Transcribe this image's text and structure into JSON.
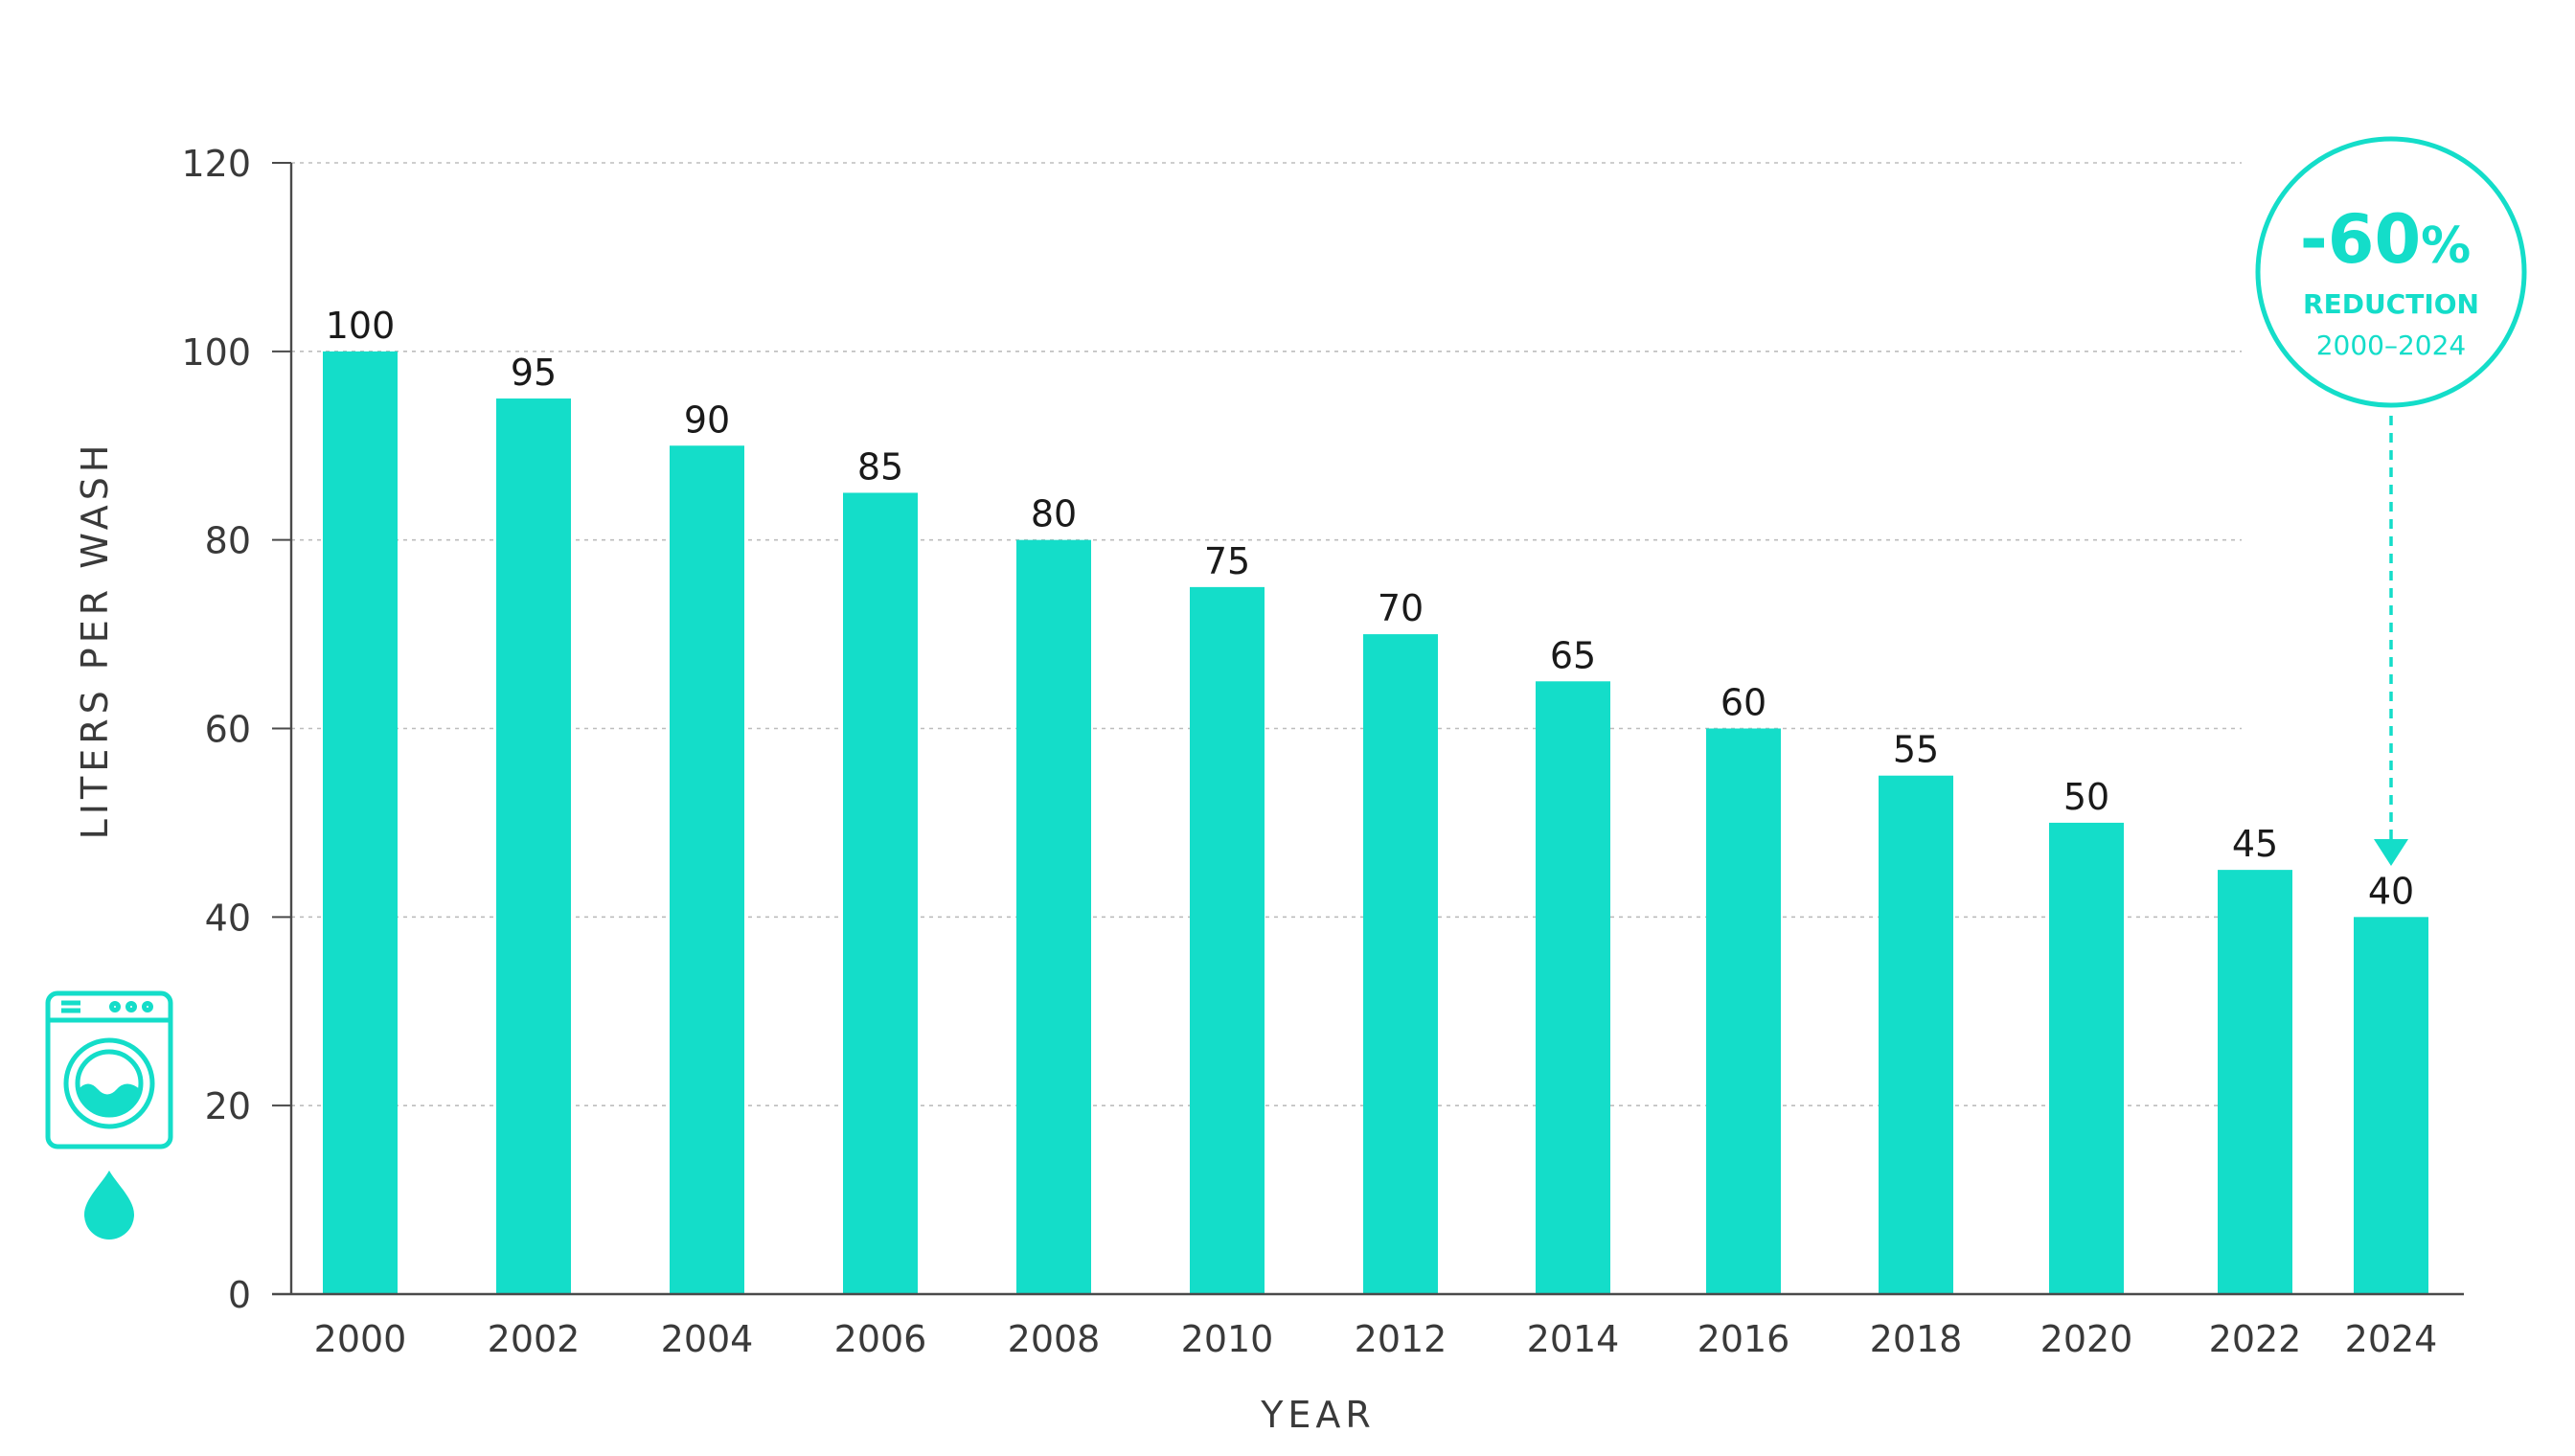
{
  "colors": {
    "accent": "#14ddc9",
    "text": "#1a1a1a",
    "axis": "#4a4a4a",
    "grid": "#bdbdbd"
  },
  "icons": [
    "washing-machine-icon",
    "water-drop-icon"
  ],
  "badge": {
    "value": "-60",
    "percent": "%",
    "label": "REDUCTION",
    "range": "2000–2024"
  },
  "chart_data": {
    "type": "bar",
    "title": "",
    "xlabel": "YEAR",
    "ylabel": "LITERS PER WASH",
    "categories": [
      "2000",
      "2002",
      "2004",
      "2006",
      "2008",
      "2010",
      "2012",
      "2014",
      "2016",
      "2018",
      "2020",
      "2022",
      "2024"
    ],
    "values": [
      100,
      95,
      90,
      85,
      80,
      75,
      70,
      65,
      60,
      55,
      50,
      45,
      40
    ],
    "data_labels": [
      "100",
      "95",
      "90",
      "85",
      "80",
      "75",
      "70",
      "65",
      "60",
      "55",
      "50",
      "45",
      "40"
    ],
    "yticks": [
      0,
      20,
      40,
      60,
      80,
      100,
      120
    ],
    "ylim": [
      0,
      120
    ],
    "grid": "horizontal dashed",
    "legend": "none"
  }
}
